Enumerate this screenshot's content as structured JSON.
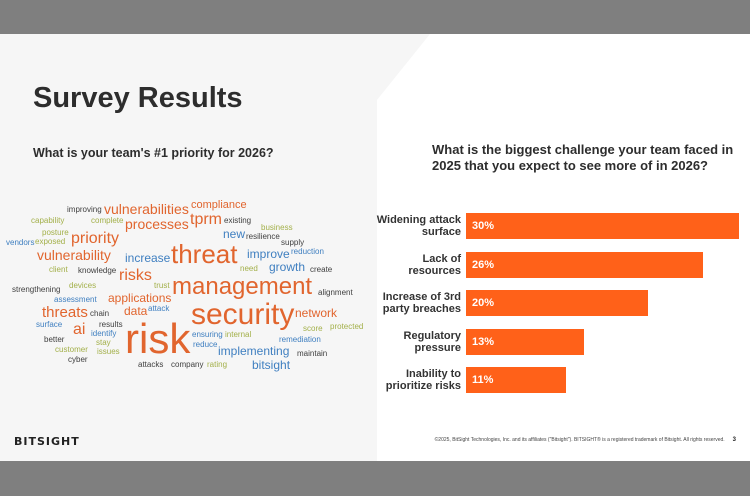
{
  "slide": {
    "title": "Survey Results",
    "left_question": "What is your team's #1 priority for 2026?",
    "right_question": "What is the biggest challenge your team faced in 2025 that you expect to see more of in 2026?",
    "logo": "BITSIGHT",
    "copyright": "©2025, BitSight Technologies, Inc. and its affiliates (\"Bitsight\"). BITSIGHT® is a registered trademark of Bitsight. All rights reserved.",
    "page_number": "3"
  },
  "colors": {
    "orange": "#e1652e",
    "blue": "#3f7fc0",
    "olive": "#a3b04a",
    "dark": "#3f3f3f",
    "bar": "#ff6119"
  },
  "word_cloud": [
    {
      "text": "improving",
      "color": "dark"
    },
    {
      "text": "complete",
      "color": "olive"
    },
    {
      "text": "compliance",
      "color": "orange"
    },
    {
      "text": "capability",
      "color": "olive"
    },
    {
      "text": "posture",
      "color": "olive"
    },
    {
      "text": "processes",
      "color": "orange"
    },
    {
      "text": "tprm",
      "color": "orange"
    },
    {
      "text": "existing",
      "color": "dark"
    },
    {
      "text": "exposed",
      "color": "olive"
    },
    {
      "text": "vulnerabilities",
      "color": "orange"
    },
    {
      "text": "new",
      "color": "blue"
    },
    {
      "text": "resilience",
      "color": "dark"
    },
    {
      "text": "vendors",
      "color": "blue"
    },
    {
      "text": "priority",
      "color": "orange"
    },
    {
      "text": "business",
      "color": "olive"
    },
    {
      "text": "supply",
      "color": "dark"
    },
    {
      "text": "vulnerability",
      "color": "orange"
    },
    {
      "text": "increase",
      "color": "blue"
    },
    {
      "text": "threat",
      "color": "orange"
    },
    {
      "text": "reduction",
      "color": "blue"
    },
    {
      "text": "client",
      "color": "olive"
    },
    {
      "text": "knowledge",
      "color": "dark"
    },
    {
      "text": "need",
      "color": "olive"
    },
    {
      "text": "growth",
      "color": "blue"
    },
    {
      "text": "applications",
      "color": "orange"
    },
    {
      "text": "improve",
      "color": "blue"
    },
    {
      "text": "create",
      "color": "dark"
    },
    {
      "text": "risks",
      "color": "orange"
    },
    {
      "text": "trust",
      "color": "olive"
    },
    {
      "text": "strengthening",
      "color": "dark"
    },
    {
      "text": "devices",
      "color": "olive"
    },
    {
      "text": "management",
      "color": "orange"
    },
    {
      "text": "alignment",
      "color": "dark"
    },
    {
      "text": "data",
      "color": "orange"
    },
    {
      "text": "assessment",
      "color": "blue"
    },
    {
      "text": "attack",
      "color": "blue"
    },
    {
      "text": "threats",
      "color": "orange"
    },
    {
      "text": "chain",
      "color": "dark"
    },
    {
      "text": "results",
      "color": "dark"
    },
    {
      "text": "ensuring",
      "color": "blue"
    },
    {
      "text": "security",
      "color": "orange"
    },
    {
      "text": "network",
      "color": "orange"
    },
    {
      "text": "surface",
      "color": "blue"
    },
    {
      "text": "identify",
      "color": "blue"
    },
    {
      "text": "ai",
      "color": "orange"
    },
    {
      "text": "stay",
      "color": "olive"
    },
    {
      "text": "score",
      "color": "olive"
    },
    {
      "text": "protected",
      "color": "olive"
    },
    {
      "text": "internal",
      "color": "olive"
    },
    {
      "text": "better",
      "color": "dark"
    },
    {
      "text": "risk",
      "color": "orange"
    },
    {
      "text": "reduce",
      "color": "blue"
    },
    {
      "text": "remediation",
      "color": "blue"
    },
    {
      "text": "customer",
      "color": "olive"
    },
    {
      "text": "issues",
      "color": "olive"
    },
    {
      "text": "implementing",
      "color": "blue"
    },
    {
      "text": "maintain",
      "color": "dark"
    },
    {
      "text": "cyber",
      "color": "dark"
    },
    {
      "text": "attacks",
      "color": "dark"
    },
    {
      "text": "company",
      "color": "dark"
    },
    {
      "text": "rating",
      "color": "olive"
    },
    {
      "text": "bitsight",
      "color": "blue"
    }
  ],
  "chart_data": {
    "type": "bar",
    "orientation": "horizontal",
    "title": "What is the biggest challenge your team faced in 2025 that you expect to see more of in 2026?",
    "categories": [
      "Widening attack surface",
      "Lack of resources",
      "Increase of 3rd party breaches",
      "Regulatory pressure",
      "Inability to prioritize risks"
    ],
    "values": [
      30,
      26,
      20,
      13,
      11
    ],
    "value_labels": [
      "30%",
      "26%",
      "20%",
      "13%",
      "11%"
    ],
    "unit": "%",
    "grid": false,
    "color": "#ff6119"
  }
}
